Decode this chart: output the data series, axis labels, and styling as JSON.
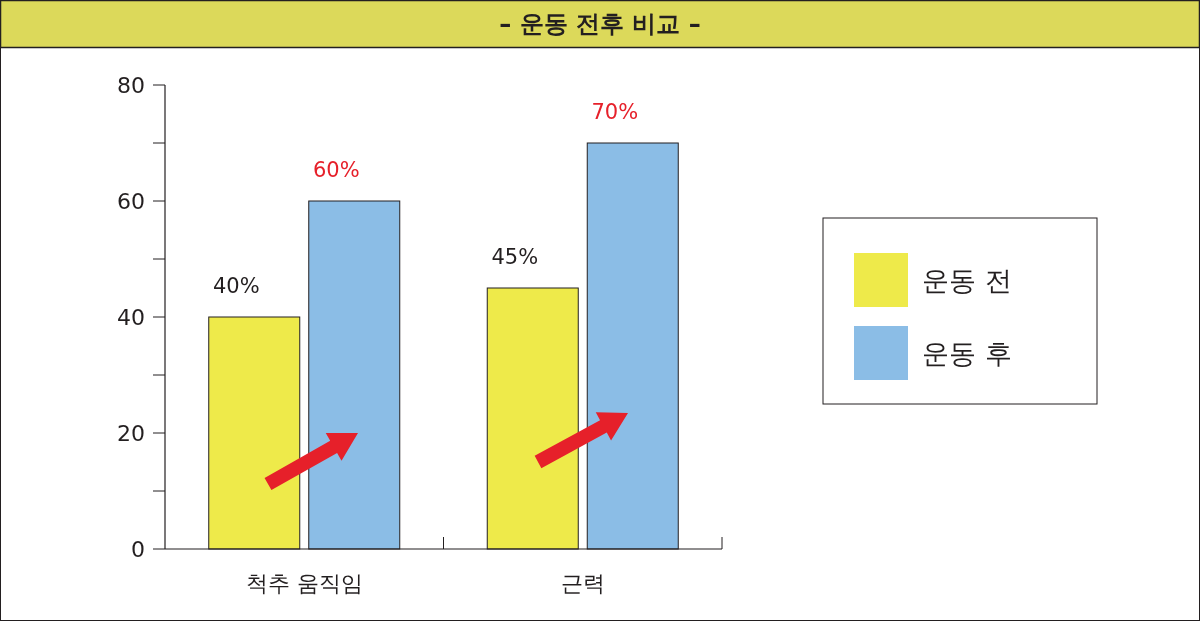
{
  "chart_data": {
    "type": "bar",
    "title": "– 운동 전후 비교 –",
    "categories": [
      "척추 움직임",
      "근력"
    ],
    "series": [
      {
        "name": "운동 전",
        "color": "#eeea4a",
        "values": [
          40,
          45
        ],
        "value_labels": [
          "40%",
          "45%"
        ]
      },
      {
        "name": "운동 후",
        "color": "#8bbde6",
        "values": [
          60,
          70
        ],
        "value_labels": [
          "60%",
          "70%"
        ]
      }
    ],
    "ylim": [
      0,
      80
    ],
    "yticks": [
      0,
      {
        "value": 10,
        "label": null
      },
      20,
      {
        "value": 30,
        "label": null
      },
      40,
      {
        "value": 50,
        "label": null
      },
      60,
      {
        "value": 70,
        "label": null
      },
      80
    ],
    "grid": false,
    "legend": "right"
  }
}
